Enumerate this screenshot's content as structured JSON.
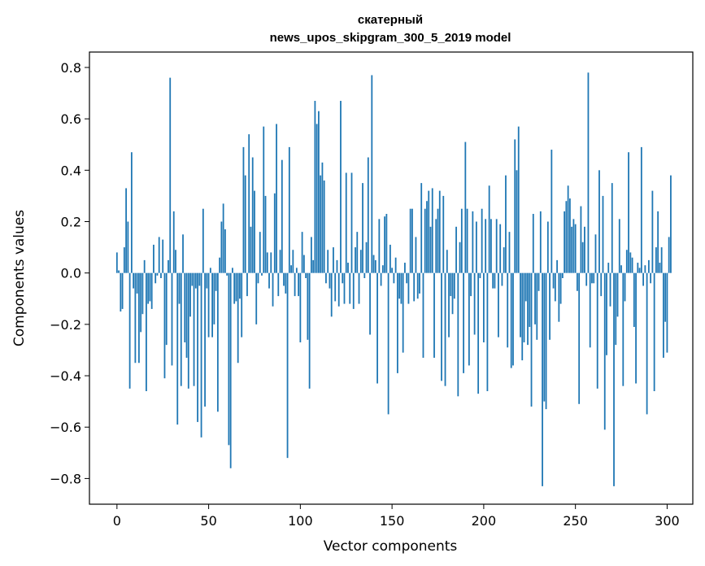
{
  "chart_data": {
    "type": "bar",
    "title_line1": "скатерный",
    "title_line2": "news_upos_skipgram_300_5_2019 model",
    "xlabel": "Vector components",
    "ylabel": "Components values",
    "xlim": [
      -15,
      314
    ],
    "ylim": [
      -0.9,
      0.86
    ],
    "x_ticks": [
      0,
      50,
      100,
      150,
      200,
      250,
      300
    ],
    "y_ticks": [
      -0.8,
      -0.6,
      -0.4,
      -0.2,
      0.0,
      0.2,
      0.4,
      0.6,
      0.8
    ],
    "x_tick_labels": [
      "0",
      "50",
      "100",
      "150",
      "200",
      "250",
      "300"
    ],
    "y_tick_labels": [
      "−0.8",
      "−0.6",
      "−0.4",
      "−0.2",
      "0.0",
      "0.2",
      "0.4",
      "0.6",
      "0.8"
    ],
    "bar_color": "#1f77b4",
    "grid": false,
    "legend": "none",
    "x_start": 0,
    "values": [
      0.08,
      0.01,
      -0.15,
      -0.14,
      0.1,
      0.33,
      0.2,
      -0.45,
      0.47,
      -0.06,
      -0.35,
      -0.08,
      -0.35,
      -0.23,
      -0.16,
      0.05,
      -0.46,
      -0.12,
      -0.11,
      -0.14,
      0.11,
      -0.04,
      -0.01,
      0.14,
      -0.02,
      0.13,
      -0.41,
      -0.28,
      0.05,
      0.76,
      -0.36,
      0.24,
      0.09,
      -0.59,
      -0.12,
      -0.44,
      0.15,
      -0.27,
      -0.33,
      -0.45,
      -0.17,
      -0.05,
      -0.44,
      -0.06,
      -0.58,
      -0.05,
      -0.64,
      0.25,
      -0.52,
      -0.06,
      -0.25,
      0.02,
      -0.25,
      -0.2,
      -0.07,
      -0.54,
      0.06,
      0.2,
      0.27,
      0.17,
      -0.01,
      -0.67,
      -0.76,
      0.02,
      -0.12,
      -0.11,
      -0.35,
      -0.1,
      -0.25,
      0.49,
      0.38,
      -0.09,
      0.54,
      0.18,
      0.45,
      0.32,
      -0.2,
      -0.04,
      0.16,
      -0.01,
      0.57,
      0.3,
      0.08,
      -0.06,
      0.08,
      -0.13,
      0.31,
      0.58,
      -0.09,
      0.09,
      0.44,
      -0.05,
      -0.08,
      -0.72,
      0.49,
      0.03,
      0.09,
      -0.09,
      0.02,
      -0.09,
      -0.27,
      0.16,
      0.07,
      -0.02,
      -0.26,
      -0.45,
      0.14,
      0.05,
      0.67,
      0.58,
      0.63,
      0.38,
      0.43,
      0.36,
      -0.04,
      0.09,
      -0.06,
      -0.17,
      0.1,
      -0.11,
      0.05,
      -0.13,
      0.67,
      -0.04,
      -0.12,
      0.39,
      0.04,
      -0.12,
      0.39,
      -0.14,
      0.1,
      0.16,
      -0.12,
      0.09,
      0.35,
      -0.02,
      0.12,
      0.45,
      -0.24,
      0.77,
      0.07,
      0.05,
      -0.43,
      0.21,
      -0.05,
      0.03,
      0.22,
      0.23,
      -0.55,
      0.11,
      0.02,
      -0.04,
      0.06,
      -0.39,
      -0.1,
      -0.12,
      -0.31,
      0.04,
      -0.04,
      -0.12,
      0.25,
      0.25,
      -0.11,
      0.14,
      -0.1,
      -0.08,
      0.35,
      -0.33,
      0.25,
      0.28,
      0.32,
      0.18,
      0.33,
      -0.33,
      0.21,
      0.25,
      0.32,
      -0.42,
      0.3,
      -0.44,
      0.09,
      -0.25,
      -0.09,
      -0.16,
      -0.1,
      0.18,
      -0.48,
      0.12,
      0.25,
      -0.39,
      0.51,
      0.25,
      -0.36,
      -0.09,
      0.24,
      -0.24,
      0.2,
      -0.47,
      -0.02,
      0.25,
      -0.27,
      0.21,
      -0.46,
      0.34,
      0.21,
      -0.06,
      -0.06,
      0.21,
      -0.25,
      0.19,
      -0.05,
      0.1,
      0.38,
      -0.29,
      0.16,
      -0.37,
      -0.36,
      0.52,
      0.4,
      0.57,
      -0.25,
      -0.34,
      -0.27,
      -0.11,
      -0.28,
      -0.21,
      -0.52,
      0.23,
      -0.2,
      -0.26,
      -0.07,
      0.24,
      -0.83,
      -0.5,
      -0.53,
      0.2,
      -0.26,
      0.48,
      -0.06,
      -0.11,
      0.05,
      -0.19,
      -0.12,
      -0.02,
      0.24,
      0.28,
      0.34,
      0.29,
      0.18,
      0.21,
      0.19,
      -0.07,
      -0.51,
      0.26,
      0.12,
      0.18,
      -0.05,
      0.78,
      -0.29,
      -0.04,
      -0.04,
      0.15,
      -0.45,
      0.4,
      -0.09,
      0.3,
      -0.61,
      -0.32,
      0.04,
      -0.13,
      0.35,
      -0.83,
      -0.28,
      -0.17,
      0.21,
      0.03,
      -0.44,
      -0.11,
      0.09,
      0.47,
      0.08,
      0.06,
      -0.21,
      -0.43,
      0.04,
      0.02,
      0.49,
      -0.05,
      0.03,
      -0.55,
      0.05,
      -0.04,
      0.32,
      -0.46,
      0.1,
      0.24,
      0.04,
      0.1,
      -0.33,
      -0.19,
      -0.31,
      0.14,
      0.38
    ]
  }
}
